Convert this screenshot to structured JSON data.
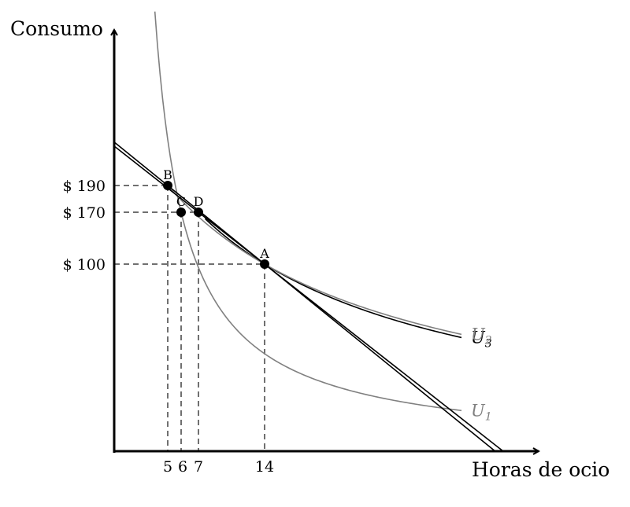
{
  "chart_data": {
    "type": "line",
    "title": "",
    "xlabel": "Horas de ocio",
    "ylabel": "Consumo",
    "grid": false,
    "x_ticks": [
      "5",
      "6",
      "7",
      "14"
    ],
    "y_ticks": [
      "$ 190",
      "$ 170",
      "$ 100"
    ],
    "points": [
      {
        "label": "A",
        "x": 14,
        "y": 100
      },
      {
        "label": "B",
        "x": 5,
        "y": 190
      },
      {
        "label": "C",
        "x": 6,
        "y": 170
      },
      {
        "label": "D",
        "x": 7,
        "y": 170
      }
    ],
    "budget_lines": [
      {
        "name": "restriccion-1",
        "through": [
          [
            5,
            190
          ],
          [
            14,
            100
          ]
        ]
      },
      {
        "name": "restriccion-2",
        "through": [
          [
            7,
            170
          ],
          [
            14,
            100
          ]
        ]
      }
    ],
    "series": [
      {
        "name": "U3",
        "base": "U",
        "sub": "3",
        "color": "#000000",
        "through": [
          [
            7,
            170
          ],
          [
            14,
            100
          ]
        ],
        "x_min": 7.7
      },
      {
        "name": "U2",
        "base": "U",
        "sub": "2",
        "color": "#808080",
        "through": [
          [
            5,
            190
          ],
          [
            14,
            100
          ]
        ],
        "x_min": 5.1
      },
      {
        "name": "U1",
        "base": "U",
        "sub": "1",
        "color": "#808080",
        "through": [
          [
            6,
            170
          ]
        ],
        "x_min": 3.8
      }
    ]
  }
}
